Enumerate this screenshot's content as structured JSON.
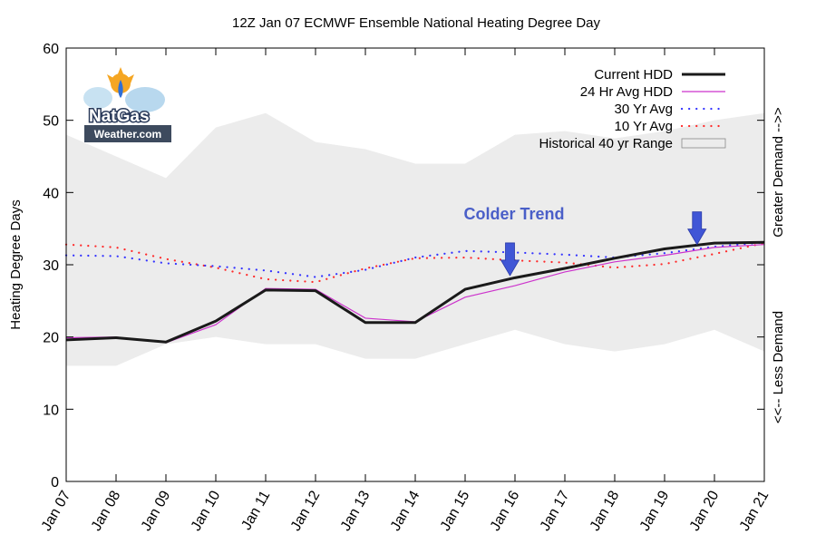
{
  "chart_data": {
    "type": "line",
    "title": "12Z Jan 07 ECMWF Ensemble National Heating Degree Day",
    "xlabel": "",
    "ylabel": "Heating Degree Days",
    "right_label_top": "Greater Demand -->>",
    "right_label_bottom": "<<-- Less Demand",
    "categories": [
      "Jan 07",
      "Jan 08",
      "Jan 09",
      "Jan 10",
      "Jan 11",
      "Jan 12",
      "Jan 13",
      "Jan 14",
      "Jan 15",
      "Jan 16",
      "Jan 17",
      "Jan 18",
      "Jan 19",
      "Jan 20",
      "Jan 21"
    ],
    "ylim": [
      0,
      60
    ],
    "yticks": [
      0,
      10,
      20,
      30,
      40,
      50,
      60
    ],
    "series": [
      {
        "name": "Current HDD",
        "color": "#1a1a1a",
        "style": "solid-thick",
        "values": [
          19.6,
          19.9,
          19.3,
          22.2,
          26.5,
          26.4,
          22.0,
          22.0,
          26.6,
          28.2,
          29.5,
          30.9,
          32.2,
          33.0,
          33.1
        ]
      },
      {
        "name": "24 Hr Avg HDD",
        "color": "#cc33cc",
        "style": "solid-thin",
        "values": [
          19.9,
          20.0,
          19.2,
          21.7,
          26.7,
          26.6,
          22.6,
          22.1,
          25.5,
          27.1,
          29.0,
          30.4,
          31.3,
          32.4,
          32.8
        ]
      },
      {
        "name": "30 Yr Avg",
        "color": "#3333ff",
        "style": "dotted",
        "values": [
          31.3,
          31.2,
          30.2,
          29.8,
          29.2,
          28.3,
          29.3,
          31.0,
          31.9,
          31.7,
          31.4,
          31.0,
          31.6,
          32.5,
          33.1
        ]
      },
      {
        "name": "10 Yr Avg",
        "color": "#ff2a2a",
        "style": "dotted",
        "values": [
          32.8,
          32.4,
          30.8,
          29.6,
          28.0,
          27.6,
          29.5,
          30.9,
          31.0,
          30.6,
          30.3,
          29.6,
          30.1,
          31.5,
          33.0
        ]
      }
    ],
    "range_series": {
      "name": "Historical 40 yr Range",
      "color": "#ececec",
      "upper": [
        48.0,
        45.0,
        42.0,
        49.0,
        51.0,
        47.0,
        46.0,
        44.0,
        44.0,
        48.0,
        48.5,
        47.5,
        48.5,
        50.0,
        51.0
      ],
      "lower": [
        16.0,
        16.0,
        19.0,
        20.0,
        19.0,
        19.0,
        17.0,
        17.0,
        19.0,
        21.0,
        19.0,
        18.0,
        19.0,
        21.0,
        18.0
      ]
    },
    "annotations": [
      {
        "text": "Colder Trend",
        "x": "Jan 16",
        "y": 37.0
      },
      {
        "type": "arrow",
        "x": 8.9,
        "y": 28.5
      },
      {
        "type": "arrow",
        "x": 12.65,
        "y": 32.8
      }
    ],
    "legend": "top-right",
    "grid": false
  },
  "logo": {
    "line1": "NatGas",
    "line2": "Weather.com"
  }
}
